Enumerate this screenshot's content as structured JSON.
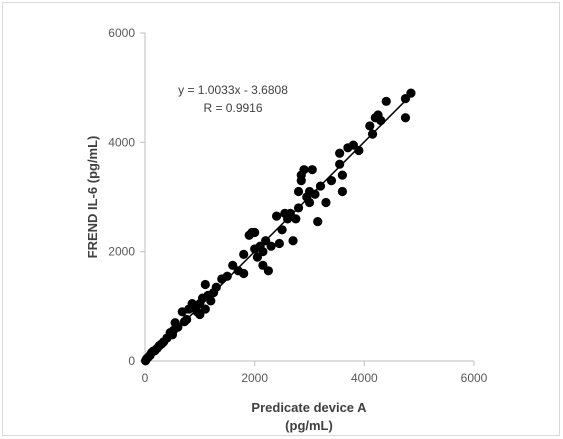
{
  "chart_data": {
    "type": "scatter",
    "title": "",
    "xlabel": [
      "Predicate device A",
      "(pg/mL)"
    ],
    "ylabel": "FREND IL-6 (pg/mL)",
    "xlim": [
      0,
      6000
    ],
    "ylim": [
      0,
      6000
    ],
    "xticks": [
      0,
      2000,
      4000,
      6000
    ],
    "yticks": [
      0,
      2000,
      4000,
      6000
    ],
    "grid": false,
    "legend": "none",
    "marker_color": "#000000",
    "axis_color": "#bfbfbf",
    "annotations": [
      "y = 1.0033x - 3.6808",
      "R = 0.9916"
    ],
    "trendline": {
      "slope": 1.0033,
      "intercept": -3.6808,
      "x_range": [
        0,
        4850
      ],
      "color": "#000000"
    },
    "points": [
      [
        10,
        5
      ],
      [
        30,
        40
      ],
      [
        60,
        70
      ],
      [
        90,
        100
      ],
      [
        120,
        150
      ],
      [
        150,
        180
      ],
      [
        180,
        190
      ],
      [
        220,
        230
      ],
      [
        260,
        280
      ],
      [
        300,
        310
      ],
      [
        340,
        350
      ],
      [
        400,
        420
      ],
      [
        460,
        520
      ],
      [
        500,
        480
      ],
      [
        520,
        560
      ],
      [
        550,
        700
      ],
      [
        600,
        620
      ],
      [
        680,
        900
      ],
      [
        720,
        720
      ],
      [
        760,
        760
      ],
      [
        800,
        950
      ],
      [
        860,
        1050
      ],
      [
        900,
        1000
      ],
      [
        950,
        900
      ],
      [
        1000,
        1050
      ],
      [
        1000,
        850
      ],
      [
        1050,
        1150
      ],
      [
        1100,
        950
      ],
      [
        1100,
        1400
      ],
      [
        1150,
        1200
      ],
      [
        1200,
        1100
      ],
      [
        1250,
        1250
      ],
      [
        1300,
        1350
      ],
      [
        1400,
        1500
      ],
      [
        1500,
        1550
      ],
      [
        1600,
        1750
      ],
      [
        1700,
        1650
      ],
      [
        1800,
        1600
      ],
      [
        1800,
        1950
      ],
      [
        1900,
        2300
      ],
      [
        1950,
        2350
      ],
      [
        2000,
        2350
      ],
      [
        2000,
        2050
      ],
      [
        2050,
        1900
      ],
      [
        2100,
        2100
      ],
      [
        2150,
        2000
      ],
      [
        2150,
        1750
      ],
      [
        2200,
        2200
      ],
      [
        2250,
        1650
      ],
      [
        2300,
        2100
      ],
      [
        2400,
        2650
      ],
      [
        2450,
        2150
      ],
      [
        2500,
        2400
      ],
      [
        2550,
        2700
      ],
      [
        2600,
        2600
      ],
      [
        2650,
        2700
      ],
      [
        2700,
        2200
      ],
      [
        2750,
        2600
      ],
      [
        2800,
        2800
      ],
      [
        2800,
        3100
      ],
      [
        2850,
        3300
      ],
      [
        2850,
        3400
      ],
      [
        2900,
        3500
      ],
      [
        2950,
        3000
      ],
      [
        3000,
        2900
      ],
      [
        3000,
        3100
      ],
      [
        3050,
        3500
      ],
      [
        3100,
        3050
      ],
      [
        3150,
        2550
      ],
      [
        3200,
        3200
      ],
      [
        3300,
        2900
      ],
      [
        3400,
        3300
      ],
      [
        3550,
        3600
      ],
      [
        3550,
        3800
      ],
      [
        3600,
        3400
      ],
      [
        3600,
        3100
      ],
      [
        3700,
        3900
      ],
      [
        3800,
        3950
      ],
      [
        3900,
        3850
      ],
      [
        4100,
        4300
      ],
      [
        4150,
        4150
      ],
      [
        4200,
        4450
      ],
      [
        4250,
        4500
      ],
      [
        4300,
        4400
      ],
      [
        4400,
        4750
      ],
      [
        4750,
        4450
      ],
      [
        4750,
        4800
      ],
      [
        4850,
        4900
      ]
    ]
  }
}
